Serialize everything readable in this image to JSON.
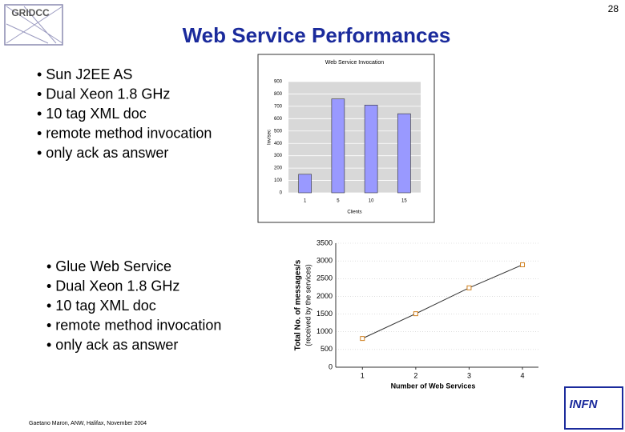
{
  "page_number": "28",
  "title": "Web Service Performances",
  "logo": "GRIDCC",
  "bullets_top": [
    "• Sun J2EE AS",
    "• Dual Xeon 1.8 GHz",
    "• 10 tag XML doc",
    "• remote method invocation",
    "• only ack as answer"
  ],
  "bullets_bottom": [
    "• Glue Web Service",
    "• Dual Xeon 1.8 GHz",
    "• 10 tag XML doc",
    "• remote method invocation",
    "• only ack as answer"
  ],
  "footer": "Gaetano Maron, ANW, Halifax, November 2004",
  "institute": "INFN",
  "chart_data": [
    {
      "type": "bar",
      "title": "Web Service Invocation",
      "x_label": "Clients",
      "y_label": "Inv/sec",
      "categories": [
        "1",
        "5",
        "10",
        "15"
      ],
      "values": [
        150,
        760,
        710,
        640
      ],
      "color": "#9999ff",
      "ylim": [
        0,
        900
      ],
      "yticks": [
        0,
        100,
        200,
        300,
        400,
        500,
        600,
        700,
        800,
        900
      ],
      "grid": true
    },
    {
      "type": "line",
      "x_label": "Number of Web Services",
      "y_label": "Total No. of messages/s",
      "y_label_2": "(received by the services)",
      "x": [
        1,
        2,
        3,
        4
      ],
      "values": [
        810,
        1510,
        2240,
        2890
      ],
      "color": "#333333",
      "marker_color": "#d08020",
      "xlim": [
        0.5,
        4.3
      ],
      "xticks": [
        1,
        2,
        3,
        4
      ],
      "ylim": [
        0,
        3500
      ],
      "yticks": [
        0,
        500,
        1000,
        1500,
        2000,
        2500,
        3000,
        3500
      ],
      "grid": true
    }
  ]
}
